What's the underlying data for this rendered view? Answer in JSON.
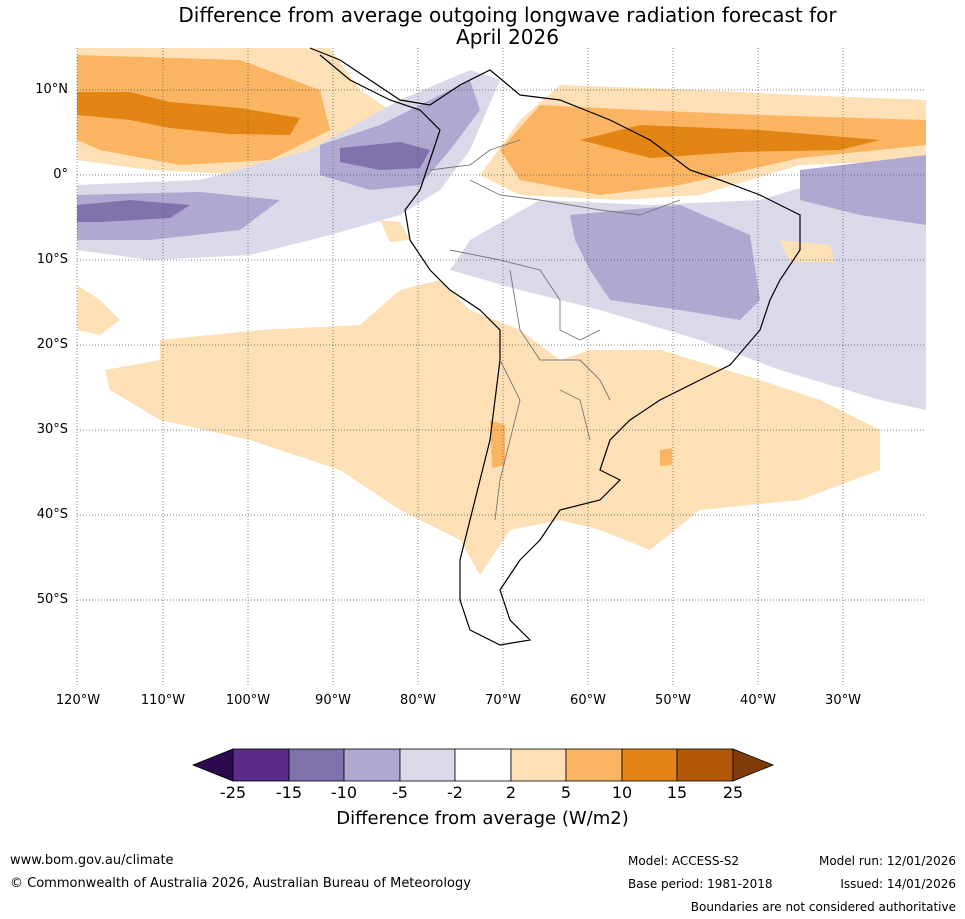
{
  "title": {
    "line1": "Difference from average outgoing longwave radiation forecast for",
    "line2": "April 2026"
  },
  "map": {
    "lat_labels": [
      "10°N",
      "0°",
      "10°S",
      "20°S",
      "30°S",
      "40°S",
      "50°S"
    ],
    "lon_labels": [
      "120°W",
      "110°W",
      "100°W",
      "90°W",
      "80°W",
      "70°W",
      "60°W",
      "50°W",
      "40°W",
      "30°W"
    ]
  },
  "colorbar": {
    "ticks": [
      "-25",
      "-15",
      "-10",
      "-5",
      "-2",
      "2",
      "5",
      "10",
      "15",
      "25"
    ],
    "colors": [
      "#2d0a4e",
      "#5b2a8a",
      "#8072ad",
      "#b0a8d0",
      "#d9d9ea",
      "#ffffff",
      "#fde0b6",
      "#fbb562",
      "#e38514",
      "#b35807",
      "#7f3b08"
    ],
    "label": "Difference from average (W/m2)"
  },
  "footer": {
    "website": "www.bom.gov.au/climate",
    "copyright": "© Commonwealth of Australia 2026, Australian Bureau of Meteorology",
    "model": "Model: ACCESS-S2",
    "base_period": "Base period: 1981-2018",
    "model_run": "Model run: 12/01/2026",
    "issued": "Issued: 14/01/2026",
    "disclaimer": "Boundaries are not considered authoritative"
  }
}
